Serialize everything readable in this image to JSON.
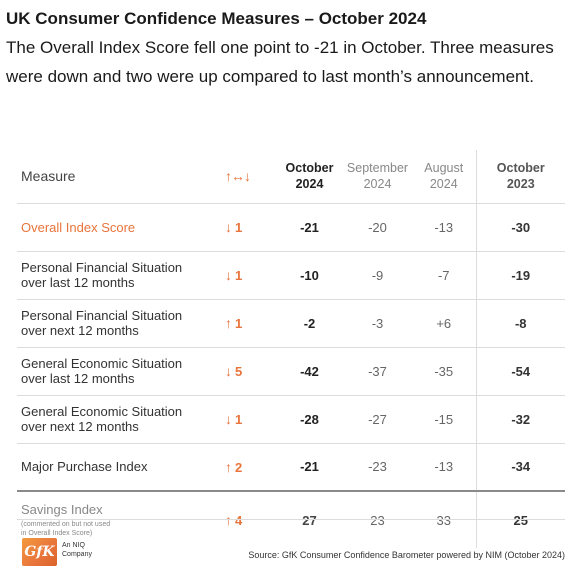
{
  "title": "UK Consumer Confidence Measures – October 2024",
  "subtitle": "The Overall Index Score fell one point to -21 in October. Three measures were down and two were up compared to last month’s announcement.",
  "colors": {
    "accent": "#e8743b",
    "text": "#222222",
    "muted": "#888888",
    "rule": "#dcdcdc"
  },
  "table": {
    "headers": {
      "measure": "Measure",
      "change": "↑↔↓",
      "oct2024": [
        "October",
        "2024"
      ],
      "sep2024": [
        "September",
        "2024"
      ],
      "aug2024": [
        "August",
        "2024"
      ],
      "oct2023": [
        "October",
        "2023"
      ]
    },
    "rows": [
      {
        "measure": [
          "Overall Index Score"
        ],
        "arrow": "↓",
        "change": "1",
        "oct2024": "-21",
        "sep2024": "-20",
        "aug2024": "-13",
        "oct2023": "-30"
      },
      {
        "measure": [
          "Personal Financial Situation",
          "over last 12 months"
        ],
        "arrow": "↓",
        "change": "1",
        "oct2024": "-10",
        "sep2024": "-9",
        "aug2024": "-7",
        "oct2023": "-19"
      },
      {
        "measure": [
          "Personal Financial Situation",
          "over next 12 months"
        ],
        "arrow": "↑",
        "change": "1",
        "oct2024": "-2",
        "sep2024": "-3",
        "aug2024": "+6",
        "oct2023": "-8"
      },
      {
        "measure": [
          "General Economic Situation",
          "over last 12 months"
        ],
        "arrow": "↓",
        "change": "5",
        "oct2024": "-42",
        "sep2024": "-37",
        "aug2024": "-35",
        "oct2023": "-54"
      },
      {
        "measure": [
          "General Economic Situation",
          "over next 12 months"
        ],
        "arrow": "↓",
        "change": "1",
        "oct2024": "-28",
        "sep2024": "-27",
        "aug2024": "-15",
        "oct2023": "-32"
      },
      {
        "measure": [
          "Major Purchase Index"
        ],
        "arrow": "↑",
        "change": "2",
        "oct2024": "-21",
        "sep2024": "-23",
        "aug2024": "-13",
        "oct2023": "-34"
      }
    ],
    "savings": {
      "measure": "Savings Index",
      "note": [
        "(commented on but not used",
        "in Overall Index Score)"
      ],
      "arrow": "↑",
      "change": "4",
      "oct2024": "27",
      "sep2024": "23",
      "aug2024": "33",
      "oct2023": "25"
    }
  },
  "footer": {
    "logo_text": "GfK",
    "logo_sub": [
      "An NIQ",
      "Company"
    ],
    "source": "Source: GfK Consumer Confidence Barometer powered by NIM (October 2024)"
  }
}
